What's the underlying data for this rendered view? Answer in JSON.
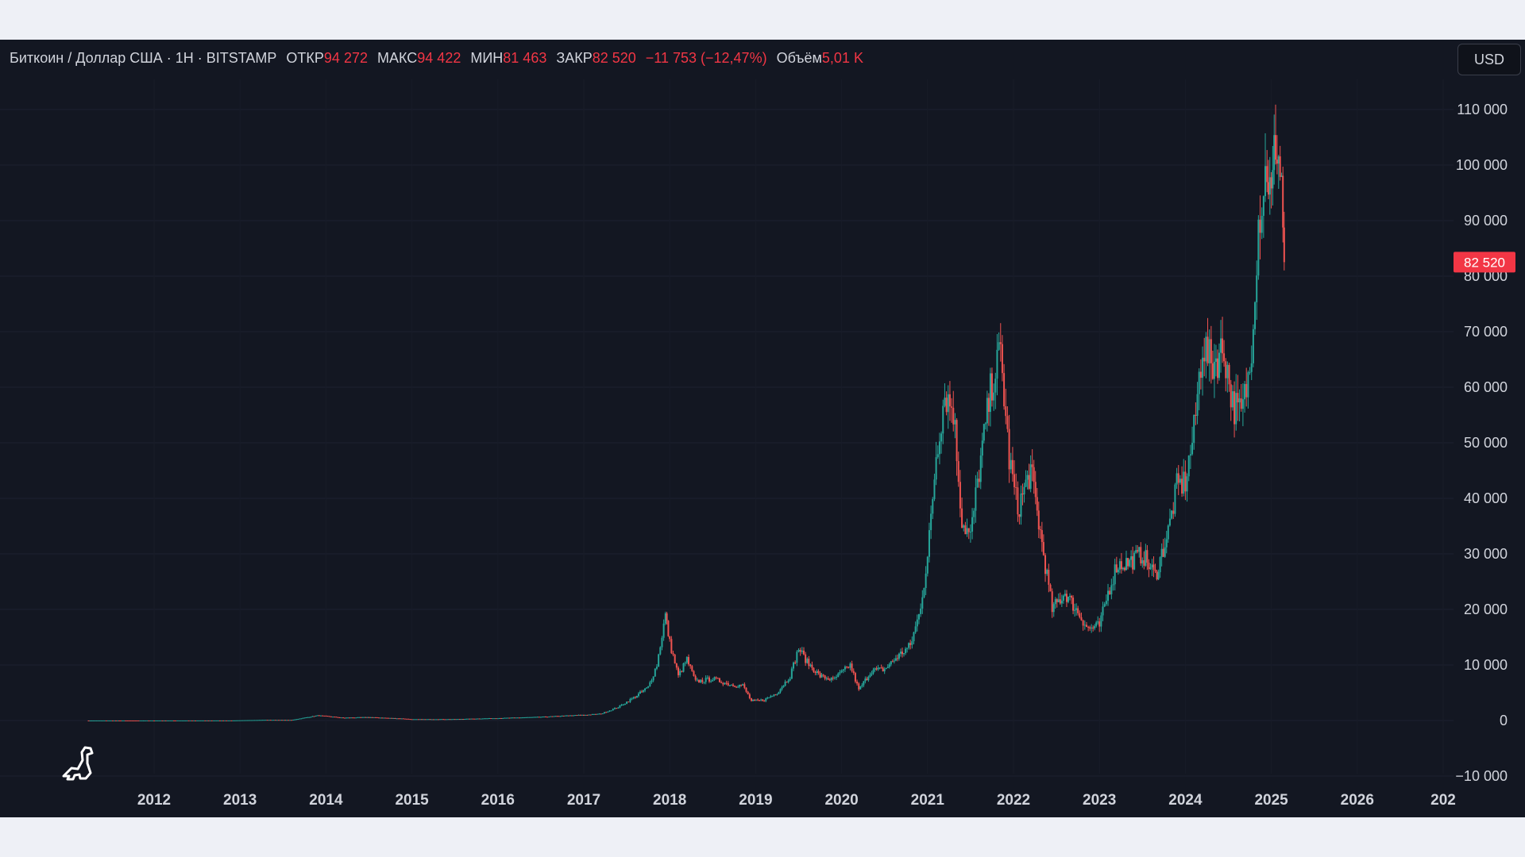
{
  "legend": {
    "symbol": "Биткоин / Доллар США · 1Н · BITSTAMP",
    "open_label": "ОТКР",
    "open": "94 272",
    "high_label": "МАКС",
    "high": "94 422",
    "low_label": "МИН",
    "low": "81 463",
    "close_label": "ЗАКР",
    "close": "82 520",
    "change": "−11 753 (−12,47%)",
    "volume_label": "Объём",
    "volume": "5,01 K"
  },
  "currency": "USD",
  "price_badge": "82 520",
  "colors": {
    "background": "#131722",
    "up": "#26a69a",
    "down": "#ef5350",
    "badge": "#f23645",
    "text": "#d1d4dc"
  },
  "icons": {
    "logo": "dino-logo-icon"
  },
  "chart_data": {
    "type": "candlestick",
    "y_ticks": [
      "110 000",
      "100 000",
      "90 000",
      "80 000",
      "70 000",
      "60 000",
      "50 000",
      "40 000",
      "30 000",
      "20 000",
      "10 000",
      "0",
      "−10 000"
    ],
    "y_tick_values": [
      110000,
      100000,
      90000,
      80000,
      70000,
      60000,
      50000,
      40000,
      30000,
      20000,
      10000,
      0,
      -10000
    ],
    "x_ticks": [
      "2012",
      "2013",
      "2014",
      "2015",
      "2016",
      "2017",
      "2018",
      "2019",
      "2020",
      "2021",
      "2022",
      "2023",
      "2024",
      "2025",
      "2026",
      "202"
    ],
    "ylim": [
      -10000,
      112000
    ],
    "xlim": [
      2011.0,
      2027.0
    ],
    "series": [
      {
        "points": [
          [
            2011.2,
            5
          ],
          [
            2011.5,
            8
          ],
          [
            2011.8,
            4
          ],
          [
            2012.0,
            6
          ],
          [
            2012.5,
            9
          ],
          [
            2012.9,
            13
          ],
          [
            2013.3,
            120
          ],
          [
            2013.6,
            100
          ],
          [
            2013.9,
            900
          ],
          [
            2014.0,
            800
          ],
          [
            2014.2,
            500
          ],
          [
            2014.5,
            600
          ],
          [
            2014.9,
            350
          ],
          [
            2015.0,
            230
          ],
          [
            2015.5,
            250
          ],
          [
            2015.9,
            400
          ],
          [
            2016.0,
            430
          ],
          [
            2016.5,
            650
          ],
          [
            2016.9,
            950
          ],
          [
            2017.0,
            1000
          ],
          [
            2017.2,
            1200
          ],
          [
            2017.4,
            2400
          ],
          [
            2017.6,
            4300
          ],
          [
            2017.75,
            6000
          ],
          [
            2017.85,
            10000
          ],
          [
            2017.95,
            19000
          ],
          [
            2018.0,
            14000
          ],
          [
            2018.1,
            8000
          ],
          [
            2018.2,
            11000
          ],
          [
            2018.3,
            7000
          ],
          [
            2018.5,
            7500
          ],
          [
            2018.7,
            6500
          ],
          [
            2018.85,
            6300
          ],
          [
            2018.95,
            3500
          ],
          [
            2019.1,
            3700
          ],
          [
            2019.25,
            5000
          ],
          [
            2019.4,
            8000
          ],
          [
            2019.5,
            13000
          ],
          [
            2019.6,
            10500
          ],
          [
            2019.75,
            8000
          ],
          [
            2019.9,
            7300
          ],
          [
            2020.1,
            10000
          ],
          [
            2020.2,
            5500
          ],
          [
            2020.35,
            9000
          ],
          [
            2020.5,
            9200
          ],
          [
            2020.65,
            11500
          ],
          [
            2020.8,
            13500
          ],
          [
            2020.9,
            19000
          ],
          [
            2021.0,
            29000
          ],
          [
            2021.1,
            48000
          ],
          [
            2021.2,
            59000
          ],
          [
            2021.3,
            56000
          ],
          [
            2021.4,
            36000
          ],
          [
            2021.5,
            33000
          ],
          [
            2021.6,
            45000
          ],
          [
            2021.75,
            61000
          ],
          [
            2021.85,
            66000
          ],
          [
            2021.95,
            47000
          ],
          [
            2022.05,
            38000
          ],
          [
            2022.2,
            45000
          ],
          [
            2022.35,
            30000
          ],
          [
            2022.45,
            20000
          ],
          [
            2022.6,
            23000
          ],
          [
            2022.75,
            19500
          ],
          [
            2022.87,
            16500
          ],
          [
            2023.0,
            17000
          ],
          [
            2023.1,
            23000
          ],
          [
            2023.2,
            28000
          ],
          [
            2023.35,
            28500
          ],
          [
            2023.5,
            30000
          ],
          [
            2023.65,
            26000
          ],
          [
            2023.8,
            34000
          ],
          [
            2023.9,
            42000
          ],
          [
            2024.0,
            43000
          ],
          [
            2024.1,
            52000
          ],
          [
            2024.2,
            68000
          ],
          [
            2024.3,
            64000
          ],
          [
            2024.45,
            67000
          ],
          [
            2024.55,
            57000
          ],
          [
            2024.65,
            55000
          ],
          [
            2024.75,
            63000
          ],
          [
            2024.85,
            90000
          ],
          [
            2024.95,
            100000
          ],
          [
            2025.0,
            93000
          ],
          [
            2025.05,
            105000
          ],
          [
            2025.12,
            97000
          ],
          [
            2025.15,
            82520
          ]
        ]
      }
    ]
  }
}
